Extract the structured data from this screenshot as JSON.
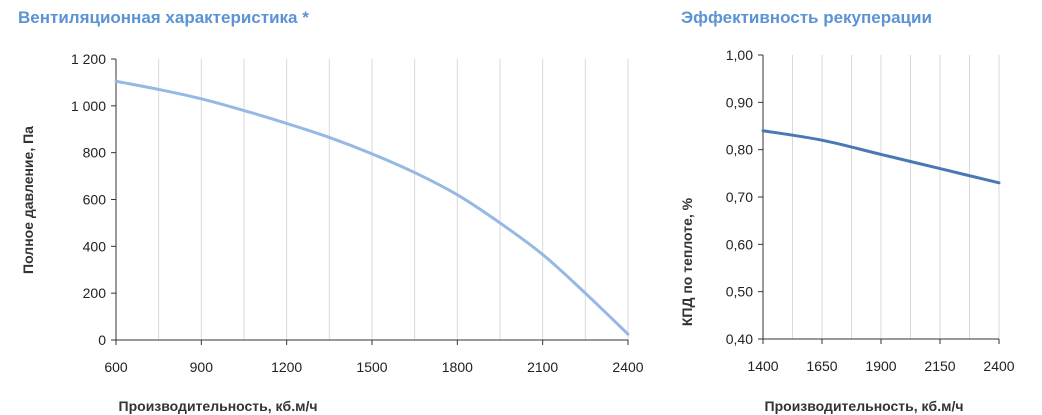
{
  "chart_data": [
    {
      "type": "line",
      "title": "Вентиляционная характеристика *",
      "xlabel": "Производительность, кб.м/ч",
      "ylabel": "Полное  давление, Па",
      "xlim": [
        600,
        2400
      ],
      "ylim": [
        0,
        1200
      ],
      "x_ticks": [
        600,
        900,
        1200,
        1500,
        1800,
        2100,
        2400
      ],
      "x_tick_labels": [
        "600",
        "900",
        "1200",
        "1500",
        "1800",
        "2100",
        "2400"
      ],
      "y_ticks": [
        0,
        200,
        400,
        600,
        800,
        1000,
        1200
      ],
      "y_tick_labels": [
        "0",
        "200",
        "400",
        "600",
        "800",
        "1 000",
        "1 200"
      ],
      "grid": {
        "vertical": true,
        "horizontal": false
      },
      "line_color": "#95b9e3",
      "series": [
        {
          "x": [
            600,
            750,
            900,
            1050,
            1200,
            1350,
            1500,
            1650,
            1800,
            1950,
            2100,
            2250,
            2400
          ],
          "values": [
            1105,
            1070,
            1030,
            980,
            925,
            865,
            795,
            715,
            620,
            500,
            365,
            200,
            25
          ]
        }
      ]
    },
    {
      "type": "line",
      "title": "Эффективность рекуперации",
      "xlabel": "Производительность, кб.м/ч",
      "ylabel": "КПД по теплоте, %",
      "xlim": [
        1400,
        2400
      ],
      "ylim": [
        0.4,
        1.0
      ],
      "x_ticks": [
        1400,
        1650,
        1900,
        2150,
        2400
      ],
      "x_tick_labels": [
        "1400",
        "1650",
        "1900",
        "2150",
        "2400"
      ],
      "y_ticks": [
        0.4,
        0.5,
        0.6,
        0.7,
        0.8,
        0.9,
        1.0
      ],
      "y_tick_labels": [
        "0,40",
        "0,50",
        "0,60",
        "0,70",
        "0,80",
        "0,90",
        "1,00"
      ],
      "grid": {
        "vertical": true,
        "horizontal": false
      },
      "line_color": "#4a78b4",
      "series": [
        {
          "x": [
            1400,
            1650,
            1900,
            2150,
            2400
          ],
          "values": [
            0.84,
            0.82,
            0.79,
            0.76,
            0.73
          ]
        }
      ]
    }
  ]
}
